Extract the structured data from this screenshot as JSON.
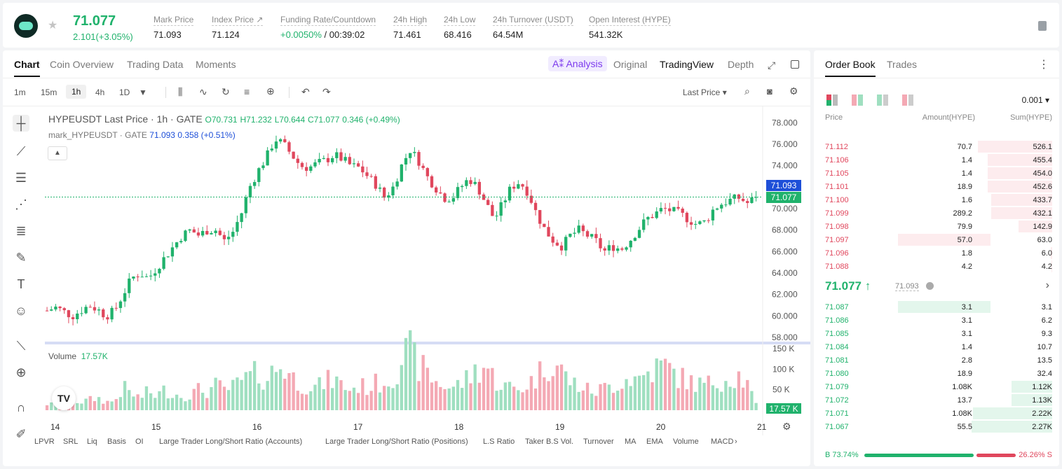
{
  "header": {
    "last_price": "71.077",
    "change": "2.101(+3.05%)",
    "stats": [
      {
        "label": "Mark Price",
        "value": "71.093"
      },
      {
        "label": "Index Price ↗",
        "value": "71.124"
      },
      {
        "label": "Funding Rate/Countdown",
        "value_green": "+0.0050%",
        "value": " / 00:39:02"
      },
      {
        "label": "24h High",
        "value": "71.461"
      },
      {
        "label": "24h Low",
        "value": "68.416"
      },
      {
        "label": "24h Turnover (USDT)",
        "value": "64.54M"
      },
      {
        "label": "Open Interest (HYPE)",
        "value": "541.32K"
      }
    ]
  },
  "tabs": {
    "chart": "Chart",
    "coin_overview": "Coin Overview",
    "trading_data": "Trading Data",
    "moments": "Moments",
    "ai_analysis": "A⁑ Analysis",
    "original": "Original",
    "tradingview": "TradingView",
    "depth": "Depth"
  },
  "toolbar": {
    "timeframes": [
      "1m",
      "15m",
      "1h",
      "4h",
      "1D"
    ],
    "active_timeframe": "1h",
    "price_type": "Last Price ▾"
  },
  "legend": {
    "title": "HYPEUSDT Last Price · 1h · GATE",
    "o": "O70.731",
    "h": "H71.232",
    "l": "L70.644",
    "c": "C71.077",
    "chg": "0.346 (+0.49%)",
    "mark": "mark_HYPEUSDT · GATE",
    "mark_val": "71.093",
    "mark_chg": "0.358 (+0.51%)",
    "volume_label": "Volume",
    "volume_val": "17.57K"
  },
  "price_tags": {
    "mark": "71.093",
    "last": "71.077",
    "volume": "17.57 K"
  },
  "indicators": [
    "LPVR",
    "SRL",
    "Liq",
    "Basis",
    "OI",
    "Large Trader Long/Short Ratio (Accounts)",
    "Large Trader Long/Short Ratio (Positions)",
    "L.S Ratio",
    "Taker B.S Vol.",
    "Turnover",
    "MA",
    "EMA",
    "Volume",
    "MACD"
  ],
  "colors": {
    "up": "#20b26c",
    "down": "#e0475d",
    "up_vol": "#9fdfc0",
    "down_vol": "#f4a9b4",
    "accent_blue": "#1e4fd8"
  },
  "chart_data": {
    "type": "candlestick",
    "y_ticks": [
      "78.000",
      "76.000",
      "74.000",
      "72.000",
      "70.000",
      "68.000",
      "66.000",
      "64.000",
      "62.000",
      "60.000",
      "58.000"
    ],
    "ylim": [
      58,
      79
    ],
    "x_ticks": [
      "14",
      "15",
      "16",
      "17",
      "18",
      "19",
      "20",
      "21"
    ],
    "vol_ticks": [
      "150 K",
      "100 K",
      "50 K"
    ],
    "close_path": [
      60.5,
      60.8,
      60.4,
      60.0,
      60.5,
      61.0,
      60.6,
      60.0,
      60.5,
      62.0,
      63.5,
      64.0,
      63.5,
      64.5,
      65.5,
      66.5,
      67.5,
      68.0,
      67.5,
      68.0,
      68.0,
      67.0,
      67.8,
      69.5,
      72.0,
      73.5,
      74.8,
      76.5,
      76.0,
      75.0,
      74.0,
      73.8,
      74.2,
      74.5,
      75.0,
      74.6,
      74.0,
      73.8,
      73.0,
      72.2,
      71.0,
      72.0,
      74.0,
      75.5,
      74.5,
      73.0,
      72.0,
      71.0,
      71.0,
      72.0,
      72.8,
      72.0,
      70.5,
      69.0,
      70.5,
      72.0,
      72.5,
      71.5,
      69.5,
      68.0,
      67.0,
      66.5,
      67.5,
      68.0,
      67.5,
      67.0,
      66.0,
      66.5,
      66.2,
      67.0,
      68.0,
      69.0,
      69.5,
      70.0,
      69.8,
      69.5,
      69.0,
      68.5,
      68.8,
      70.0,
      70.5,
      70.8,
      71.0,
      70.5,
      71.077
    ],
    "volume_path": [
      15,
      14,
      18,
      22,
      20,
      25,
      30,
      20,
      22,
      55,
      40,
      30,
      45,
      35,
      50,
      40,
      35,
      38,
      50,
      45,
      60,
      50,
      55,
      70,
      80,
      90,
      75,
      100,
      110,
      80,
      65,
      60,
      55,
      70,
      75,
      60,
      50,
      60,
      55,
      65,
      70,
      80,
      130,
      140,
      110,
      90,
      70,
      60,
      55,
      65,
      80,
      100,
      110,
      75,
      60,
      55,
      50,
      65,
      80,
      110,
      120,
      95,
      70,
      60,
      50,
      45,
      55,
      60,
      70,
      80,
      75,
      90,
      100,
      110,
      95,
      80,
      70,
      65,
      60,
      70,
      75,
      80,
      85,
      60,
      17.57
    ]
  },
  "orderbook": {
    "tabs": {
      "book": "Order Book",
      "trades": "Trades"
    },
    "precision": "0.001 ▾",
    "headers": {
      "price": "Price",
      "amount": "Amount(HYPE)",
      "sum": "Sum(HYPE)"
    },
    "asks": [
      {
        "p": "71.112",
        "a": "70.7",
        "s": "526.1",
        "sf": 0.92,
        "af": 0
      },
      {
        "p": "71.106",
        "a": "1.4",
        "s": "455.4",
        "sf": 0.8,
        "af": 0
      },
      {
        "p": "71.105",
        "a": "1.4",
        "s": "454.0",
        "sf": 0.8,
        "af": 0
      },
      {
        "p": "71.101",
        "a": "18.9",
        "s": "452.6",
        "sf": 0.8,
        "af": 0
      },
      {
        "p": "71.100",
        "a": "1.6",
        "s": "433.7",
        "sf": 0.76,
        "af": 0
      },
      {
        "p": "71.099",
        "a": "289.2",
        "s": "432.1",
        "sf": 0.76,
        "af": 0
      },
      {
        "p": "71.098",
        "a": "79.9",
        "s": "142.9",
        "sf": 0.42,
        "af": 0
      },
      {
        "p": "71.097",
        "a": "57.0",
        "s": "63.0",
        "sf": 0.0,
        "af": 0.33
      },
      {
        "p": "71.096",
        "a": "1.8",
        "s": "6.0",
        "sf": 0.02,
        "af": 0
      },
      {
        "p": "71.088",
        "a": "4.2",
        "s": "4.2",
        "sf": 0.01,
        "af": 0
      }
    ],
    "mid": {
      "price": "71.077 ↑",
      "mark": "71.093"
    },
    "bids": [
      {
        "p": "71.087",
        "a": "3.1",
        "s": "3.1",
        "sf": 0.0,
        "af": 0.33
      },
      {
        "p": "71.086",
        "a": "3.1",
        "s": "6.2",
        "sf": 0.0,
        "af": 0
      },
      {
        "p": "71.085",
        "a": "3.1",
        "s": "9.3",
        "sf": 0.0,
        "af": 0
      },
      {
        "p": "71.084",
        "a": "1.4",
        "s": "10.7",
        "sf": 0.0,
        "af": 0
      },
      {
        "p": "71.081",
        "a": "2.8",
        "s": "13.5",
        "sf": 0.0,
        "af": 0
      },
      {
        "p": "71.080",
        "a": "18.9",
        "s": "32.4",
        "sf": 0.0,
        "af": 0
      },
      {
        "p": "71.079",
        "a": "1.08K",
        "s": "1.12K",
        "sf": 0.5,
        "af": 0
      },
      {
        "p": "71.072",
        "a": "13.7",
        "s": "1.13K",
        "sf": 0.5,
        "af": 0
      },
      {
        "p": "71.071",
        "a": "1.08K",
        "s": "2.22K",
        "sf": 0.98,
        "af": 0
      },
      {
        "p": "71.067",
        "a": "55.5",
        "s": "2.27K",
        "sf": 1.0,
        "af": 0
      }
    ],
    "ratio": {
      "buy": "B 73.74%",
      "sell": "26.26% S"
    }
  }
}
